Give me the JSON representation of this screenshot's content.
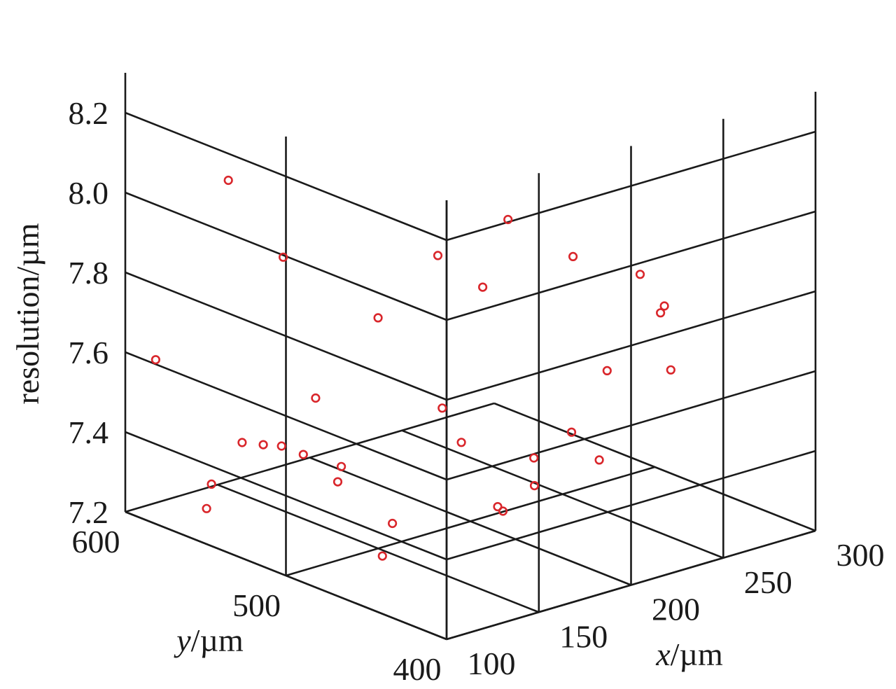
{
  "chart_data": {
    "type": "scatter",
    "projection": "3d",
    "xlabel": {
      "var": "x",
      "unit": "/µm"
    },
    "ylabel": {
      "var": "y",
      "unit": "/µm"
    },
    "zlabel": "resolution/µm",
    "xlim": [
      100,
      300
    ],
    "ylim": [
      400,
      600
    ],
    "zlim": [
      7.2,
      8.3
    ],
    "x_ticks": [
      "100",
      "150",
      "200",
      "250",
      "300"
    ],
    "y_ticks": [
      "400",
      "500",
      "600"
    ],
    "z_ticks": [
      "7.2",
      "7.4",
      "7.6",
      "7.8",
      "8.0",
      "8.2"
    ],
    "grid": true,
    "marker": "open-circle",
    "marker_color": "#d9262b",
    "points": [
      {
        "x": 101,
        "y": 537,
        "z": 8.13
      },
      {
        "x": 137,
        "y": 420,
        "z": 8.0
      },
      {
        "x": 151,
        "y": 464,
        "z": 7.99
      },
      {
        "x": 218,
        "y": 415,
        "z": 7.93
      },
      {
        "x": 223,
        "y": 503,
        "z": 7.92
      },
      {
        "x": 190,
        "y": 546,
        "z": 7.65
      },
      {
        "x": 183,
        "y": 597,
        "z": 7.73
      },
      {
        "x": 122,
        "y": 528,
        "z": 7.45
      },
      {
        "x": 188,
        "y": 406,
        "z": 7.52
      },
      {
        "x": 113,
        "y": 596,
        "z": 7.57
      },
      {
        "x": 119,
        "y": 511,
        "z": 7.46
      },
      {
        "x": 125,
        "y": 556,
        "z": 7.41
      },
      {
        "x": 137,
        "y": 508,
        "z": 7.41
      },
      {
        "x": 163,
        "y": 418,
        "z": 7.54
      },
      {
        "x": 164,
        "y": 555,
        "z": 7.47
      },
      {
        "x": 162,
        "y": 462,
        "z": 7.51
      },
      {
        "x": 183,
        "y": 498,
        "z": 7.51
      },
      {
        "x": 220,
        "y": 460,
        "z": 7.46
      },
      {
        "x": 133,
        "y": 552,
        "z": 7.4
      },
      {
        "x": 179,
        "y": 436,
        "z": 7.42
      },
      {
        "x": 168,
        "y": 443,
        "z": 7.36
      },
      {
        "x": 173,
        "y": 452,
        "z": 7.35
      },
      {
        "x": 259,
        "y": 443,
        "z": 7.59
      },
      {
        "x": 248,
        "y": 470,
        "z": 7.56
      },
      {
        "x": 263,
        "y": 454,
        "z": 7.71
      },
      {
        "x": 233,
        "y": 474,
        "z": 7.86
      },
      {
        "x": 232,
        "y": 416,
        "z": 7.83
      },
      {
        "x": 149,
        "y": 524,
        "z": 7.33
      },
      {
        "x": 131,
        "y": 585,
        "z": 7.19
      },
      {
        "x": 149,
        "y": 490,
        "z": 7.28
      },
      {
        "x": 161,
        "y": 510,
        "z": 7.15
      },
      {
        "x": 111,
        "y": 559,
        "z": 7.32
      }
    ]
  }
}
